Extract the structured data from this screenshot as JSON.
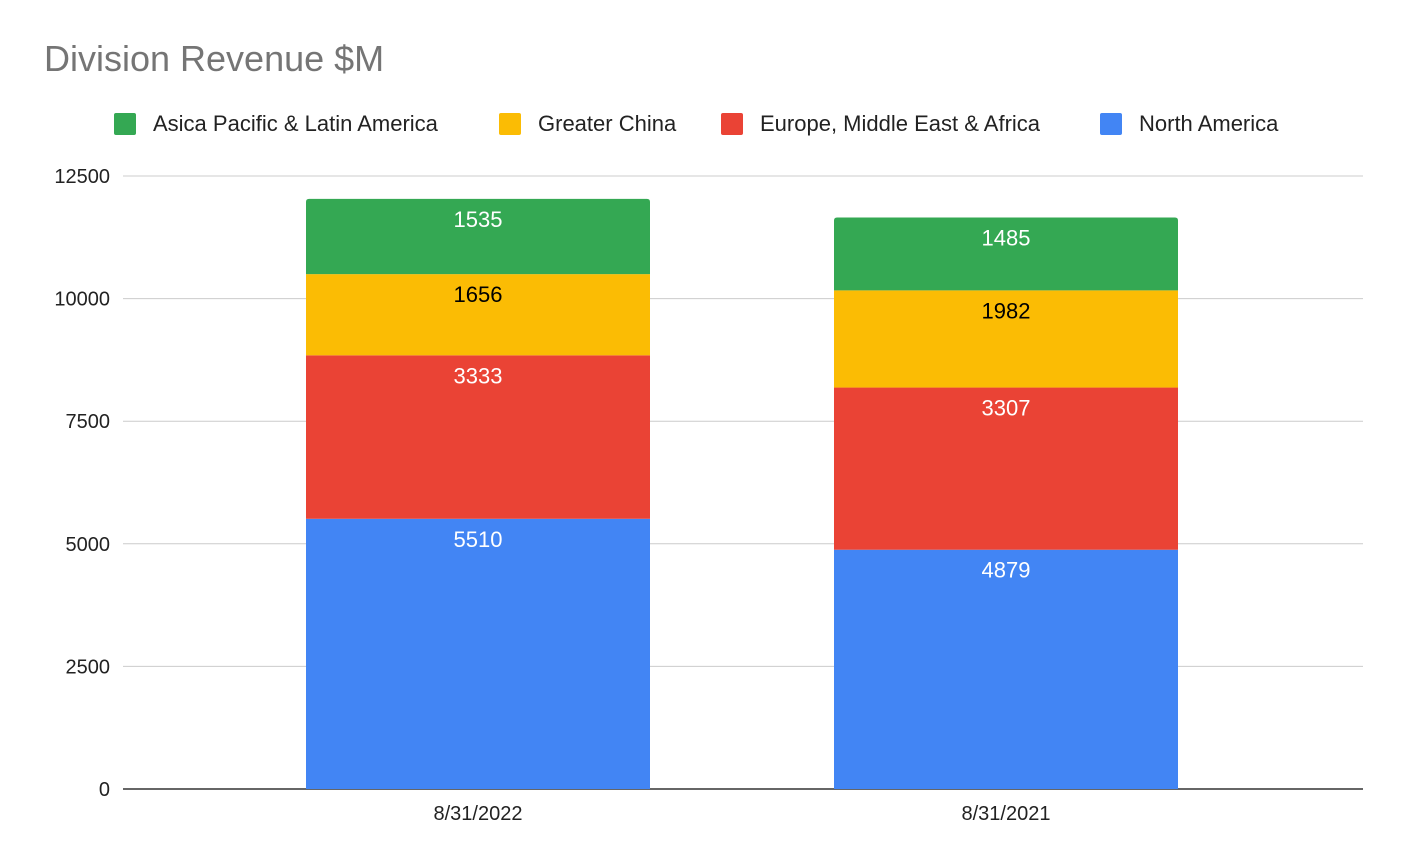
{
  "chart_data": {
    "type": "bar",
    "stacked": true,
    "title": "Division Revenue $M",
    "xlabel": "",
    "ylabel": "",
    "categories": [
      "8/31/2022",
      "8/31/2021"
    ],
    "ylim": [
      0,
      12500
    ],
    "yticks": [
      0,
      2500,
      5000,
      7500,
      10000,
      12500
    ],
    "ytick_labels": [
      "0",
      "2500",
      "5000",
      "7500",
      "10000",
      "12500"
    ],
    "grid": true,
    "legend_position": "top",
    "series": [
      {
        "name": "North America",
        "values": [
          5510,
          4879
        ],
        "color": "#4285F4",
        "label_color": "#ffffff"
      },
      {
        "name": "Europe, Middle East & Africa",
        "values": [
          3333,
          3307
        ],
        "color": "#EA4335",
        "label_color": "#ffffff"
      },
      {
        "name": "Greater China",
        "values": [
          1656,
          1982
        ],
        "color": "#FBBC04",
        "label_color": "#000000"
      },
      {
        "name": "Asica Pacific & Latin America",
        "values": [
          1535,
          1485
        ],
        "color": "#34A853",
        "label_color": "#ffffff"
      }
    ],
    "legend_order": [
      "Asica Pacific & Latin America",
      "Greater China",
      "Europe, Middle East & Africa",
      "North America"
    ]
  }
}
